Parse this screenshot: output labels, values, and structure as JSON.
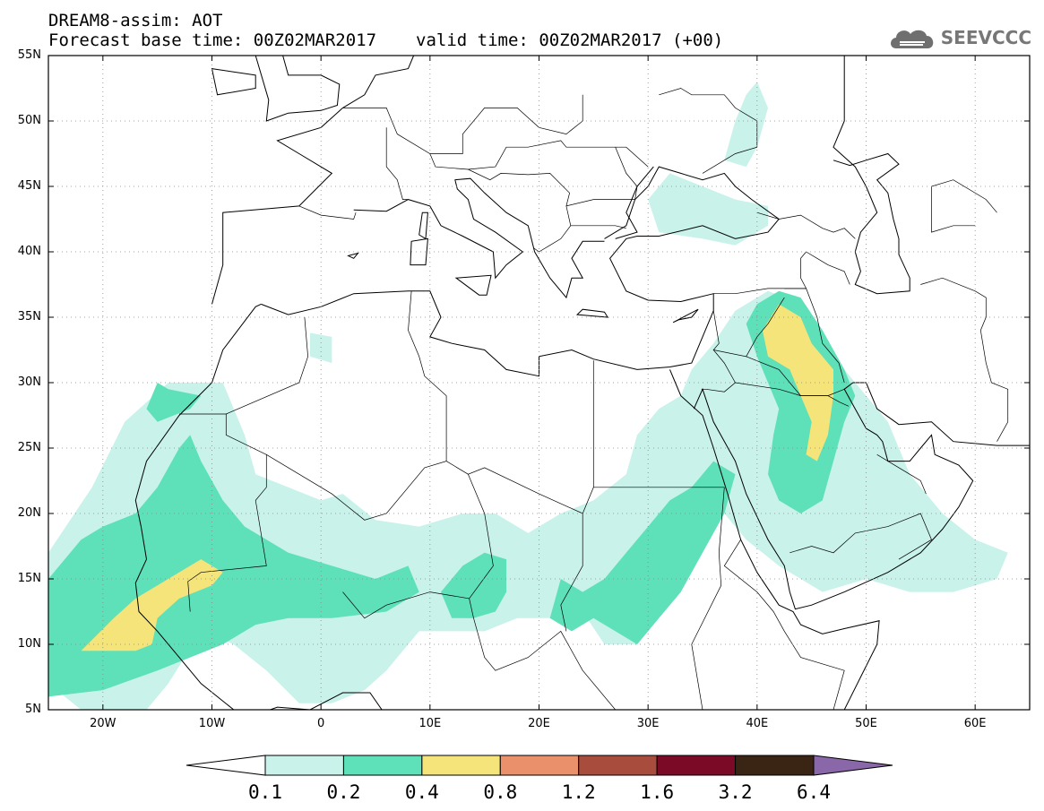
{
  "header": {
    "line1": "DREAM8-assim: AOT",
    "base_time": "Forecast base time: 00Z02MAR2017",
    "valid_time": "valid time: 00Z02MAR2017 (+00)",
    "logo_text": "SEEVCCC",
    "logo_icon": "cloud-icon"
  },
  "map": {
    "projection": "lat-lon",
    "lat_range": [
      5,
      55
    ],
    "lon_range": [
      -25,
      65
    ],
    "lat_ticks": [
      {
        "value": 55,
        "label": "55N"
      },
      {
        "value": 50,
        "label": "50N"
      },
      {
        "value": 45,
        "label": "45N"
      },
      {
        "value": 40,
        "label": "40N"
      },
      {
        "value": 35,
        "label": "35N"
      },
      {
        "value": 30,
        "label": "30N"
      },
      {
        "value": 25,
        "label": "25N"
      },
      {
        "value": 20,
        "label": "20N"
      },
      {
        "value": 15,
        "label": "15N"
      },
      {
        "value": 10,
        "label": "10N"
      },
      {
        "value": 5,
        "label": "5N"
      }
    ],
    "lon_ticks": [
      {
        "value": -20,
        "label": "20W"
      },
      {
        "value": -10,
        "label": "10W"
      },
      {
        "value": 0,
        "label": "0"
      },
      {
        "value": 10,
        "label": "10E"
      },
      {
        "value": 20,
        "label": "20E"
      },
      {
        "value": 30,
        "label": "30E"
      },
      {
        "value": 40,
        "label": "40E"
      },
      {
        "value": 50,
        "label": "50E"
      },
      {
        "value": 60,
        "label": "60E"
      }
    ],
    "grid": "dotted"
  },
  "colorbar": {
    "colors": [
      "#ffffff",
      "#c8f2ea",
      "#5ee0b8",
      "#f5e47a",
      "#ea916b",
      "#a84c3e",
      "#7a0a26",
      "#3a2414",
      "#8a67a8"
    ],
    "labels": [
      "0.1",
      "0.2",
      "0.4",
      "0.8",
      "1.2",
      "1.6",
      "3.2",
      "6.4"
    ]
  },
  "field": {
    "level_colors": {
      "0.1": "#c8f2ea",
      "0.2": "#5ee0b8",
      "0.4": "#f5e47a"
    },
    "regions": [
      {
        "level": "0.1",
        "points": [
          [
            -25,
            17
          ],
          [
            -21,
            22
          ],
          [
            -18,
            27
          ],
          [
            -14,
            30
          ],
          [
            -9,
            30
          ],
          [
            -7,
            26
          ],
          [
            -6,
            23
          ],
          [
            -3,
            22
          ],
          [
            0,
            21
          ],
          [
            2,
            21.5
          ],
          [
            5,
            19.5
          ],
          [
            9,
            19
          ],
          [
            13,
            20
          ],
          [
            16,
            20
          ],
          [
            19,
            18.5
          ],
          [
            22,
            20
          ],
          [
            25,
            21
          ],
          [
            28,
            23
          ],
          [
            29,
            26
          ],
          [
            31,
            28
          ],
          [
            33,
            29
          ],
          [
            34,
            31
          ],
          [
            36,
            33
          ],
          [
            38,
            35.5
          ],
          [
            41,
            37
          ],
          [
            44,
            36
          ],
          [
            46,
            34
          ],
          [
            48,
            31
          ],
          [
            50,
            29
          ],
          [
            52,
            27
          ],
          [
            54,
            23
          ],
          [
            57,
            20
          ],
          [
            60,
            18
          ],
          [
            63,
            17
          ],
          [
            62,
            15
          ],
          [
            58,
            14
          ],
          [
            54,
            14
          ],
          [
            50,
            15
          ],
          [
            46,
            14
          ],
          [
            42,
            16
          ],
          [
            39,
            18
          ],
          [
            37,
            20
          ],
          [
            35,
            18
          ],
          [
            33,
            14
          ],
          [
            31,
            12
          ],
          [
            29,
            10
          ],
          [
            26,
            10
          ],
          [
            24,
            12.5
          ],
          [
            21,
            12
          ],
          [
            18,
            12
          ],
          [
            15,
            11
          ],
          [
            12,
            11
          ],
          [
            9,
            11
          ],
          [
            6,
            8
          ],
          [
            4,
            6.5
          ],
          [
            1,
            5.5
          ],
          [
            -2,
            5.5
          ],
          [
            -5,
            8
          ],
          [
            -8,
            10
          ],
          [
            -11,
            11
          ],
          [
            -14,
            7
          ],
          [
            -16,
            5
          ],
          [
            -22,
            5
          ],
          [
            -25,
            7
          ]
        ]
      },
      {
        "level": "0.1",
        "points": [
          [
            32,
            46
          ],
          [
            35,
            45
          ],
          [
            38,
            44
          ],
          [
            41,
            43.5
          ],
          [
            41,
            42
          ],
          [
            38,
            40.5
          ],
          [
            35,
            41
          ],
          [
            31,
            41.5
          ],
          [
            30,
            44
          ]
        ]
      },
      {
        "level": "0.1",
        "points": [
          [
            40,
            53
          ],
          [
            41,
            51
          ],
          [
            40,
            48
          ],
          [
            39,
            46.5
          ],
          [
            37,
            47
          ],
          [
            38,
            50
          ],
          [
            39,
            52
          ]
        ]
      },
      {
        "level": "0.1",
        "points": [
          [
            -1,
            32
          ],
          [
            -1,
            33.8
          ],
          [
            1,
            33.5
          ],
          [
            1,
            31.5
          ]
        ]
      },
      {
        "level": "0.2",
        "points": [
          [
            -25,
            15
          ],
          [
            -22,
            18
          ],
          [
            -20,
            19
          ],
          [
            -17,
            20
          ],
          [
            -15,
            22
          ],
          [
            -13,
            25
          ],
          [
            -12,
            26
          ],
          [
            -11,
            24
          ],
          [
            -9,
            21
          ],
          [
            -7,
            19
          ],
          [
            -3,
            17
          ],
          [
            1,
            16
          ],
          [
            5,
            15
          ],
          [
            8,
            16
          ],
          [
            9,
            14
          ],
          [
            6,
            12.5
          ],
          [
            1,
            12
          ],
          [
            -3,
            12
          ],
          [
            -6,
            11.5
          ],
          [
            -9,
            10
          ],
          [
            -12,
            9
          ],
          [
            -15,
            8
          ],
          [
            -20,
            6.5
          ],
          [
            -25,
            6
          ]
        ]
      },
      {
        "level": "0.2",
        "points": [
          [
            -15,
            30
          ],
          [
            -14,
            29.5
          ],
          [
            -11,
            29
          ],
          [
            -12,
            28
          ],
          [
            -15,
            27
          ],
          [
            -16,
            28
          ]
        ]
      },
      {
        "level": "0.2",
        "points": [
          [
            11,
            14
          ],
          [
            13,
            16
          ],
          [
            15,
            17
          ],
          [
            17,
            16.5
          ],
          [
            17,
            14
          ],
          [
            16,
            12.5
          ],
          [
            14,
            12
          ],
          [
            12,
            12
          ]
        ]
      },
      {
        "level": "0.2",
        "points": [
          [
            21,
            12
          ],
          [
            22,
            15
          ],
          [
            24,
            14
          ],
          [
            26,
            15
          ],
          [
            28,
            17
          ],
          [
            30,
            19
          ],
          [
            32,
            21
          ],
          [
            34,
            22
          ],
          [
            35,
            23
          ],
          [
            36,
            24
          ],
          [
            38,
            23
          ],
          [
            37,
            20
          ],
          [
            35,
            17
          ],
          [
            33,
            14
          ],
          [
            31,
            12
          ],
          [
            29,
            10
          ],
          [
            27,
            11
          ],
          [
            25,
            12
          ],
          [
            23,
            11
          ]
        ]
      },
      {
        "level": "0.2",
        "points": [
          [
            39,
            34.5
          ],
          [
            40,
            36
          ],
          [
            42,
            37
          ],
          [
            44,
            36.5
          ],
          [
            46,
            34
          ],
          [
            48,
            31
          ],
          [
            49,
            29
          ],
          [
            48,
            27
          ],
          [
            47,
            24
          ],
          [
            46,
            21
          ],
          [
            44,
            20
          ],
          [
            42,
            21
          ],
          [
            41,
            23
          ],
          [
            41.5,
            26
          ],
          [
            42,
            28
          ],
          [
            41,
            30
          ],
          [
            40,
            32
          ]
        ]
      },
      {
        "level": "0.4",
        "points": [
          [
            -22,
            9.5
          ],
          [
            -19,
            12
          ],
          [
            -17,
            13.5
          ],
          [
            -14,
            15
          ],
          [
            -11,
            16.5
          ],
          [
            -9,
            15.5
          ],
          [
            -10,
            14.5
          ],
          [
            -13,
            13.5
          ],
          [
            -15,
            12
          ],
          [
            -15.5,
            10
          ],
          [
            -17,
            9.5
          ]
        ]
      },
      {
        "level": "0.4",
        "points": [
          [
            40.5,
            34
          ],
          [
            42,
            36
          ],
          [
            44,
            35
          ],
          [
            45,
            33
          ],
          [
            47,
            31
          ],
          [
            47,
            29
          ],
          [
            46.5,
            26
          ],
          [
            45.5,
            24
          ],
          [
            44.5,
            24.5
          ],
          [
            45,
            27
          ],
          [
            44,
            29
          ],
          [
            43,
            31
          ],
          [
            41,
            32
          ]
        ]
      }
    ]
  }
}
